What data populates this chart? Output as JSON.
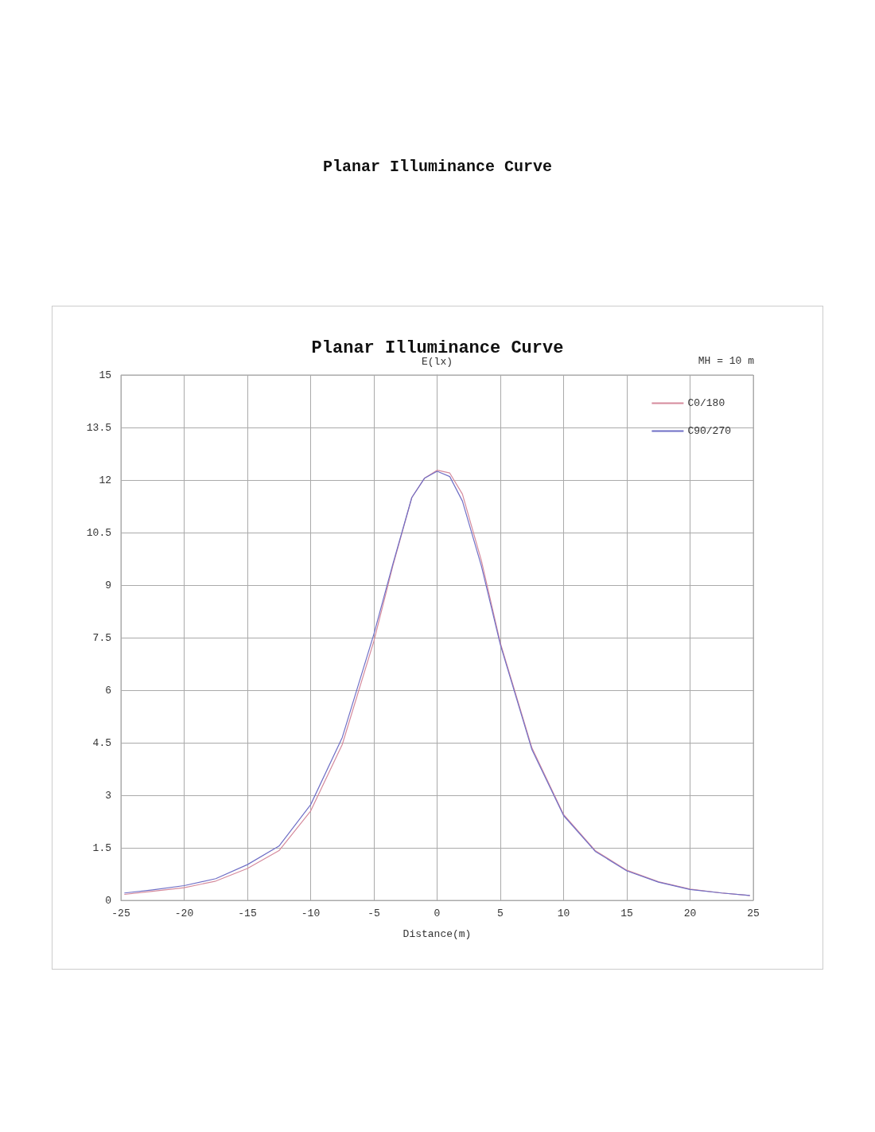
{
  "chart_data": {
    "type": "line",
    "title": "Planar Illuminance Curve",
    "subtitle": "Planar Illuminance Curve",
    "xlabel": "Distance(m)",
    "ylabel": "E(lx)",
    "annotations": [
      "MH = 10 m"
    ],
    "x": [
      -24.7,
      -22.5,
      -20,
      -17.5,
      -15,
      -12.5,
      -10,
      -7.5,
      -5,
      -3.5,
      -2,
      -1,
      0,
      1,
      2,
      3.5,
      5,
      7.5,
      10,
      12.5,
      15,
      17.5,
      20,
      22.5,
      24.7
    ],
    "series": [
      {
        "name": "C0/180",
        "color": "#d58a9c",
        "values": [
          0.17,
          0.26,
          0.36,
          0.55,
          0.91,
          1.42,
          2.55,
          4.45,
          7.4,
          9.55,
          11.5,
          12.05,
          12.28,
          12.2,
          11.6,
          9.7,
          7.35,
          4.35,
          2.45,
          1.42,
          0.86,
          0.53,
          0.32,
          0.21,
          0.14
        ]
      },
      {
        "name": "C90/270",
        "color": "#6f6fc6",
        "values": [
          0.21,
          0.3,
          0.42,
          0.62,
          1.02,
          1.55,
          2.73,
          4.65,
          7.6,
          9.6,
          11.5,
          12.05,
          12.25,
          12.1,
          11.4,
          9.55,
          7.3,
          4.3,
          2.42,
          1.4,
          0.84,
          0.52,
          0.31,
          0.21,
          0.14
        ]
      }
    ],
    "xlim": [
      -25,
      25
    ],
    "xticks": [
      -25,
      -20,
      -15,
      -10,
      -5,
      0,
      5,
      10,
      15,
      20,
      25
    ],
    "ylim": [
      0,
      15
    ],
    "yticks": [
      0,
      1.5,
      3,
      4.5,
      6,
      7.5,
      9,
      10.5,
      12,
      13.5,
      15
    ],
    "grid": true,
    "legend": "top right",
    "marker": "none",
    "line_style": "solid"
  }
}
